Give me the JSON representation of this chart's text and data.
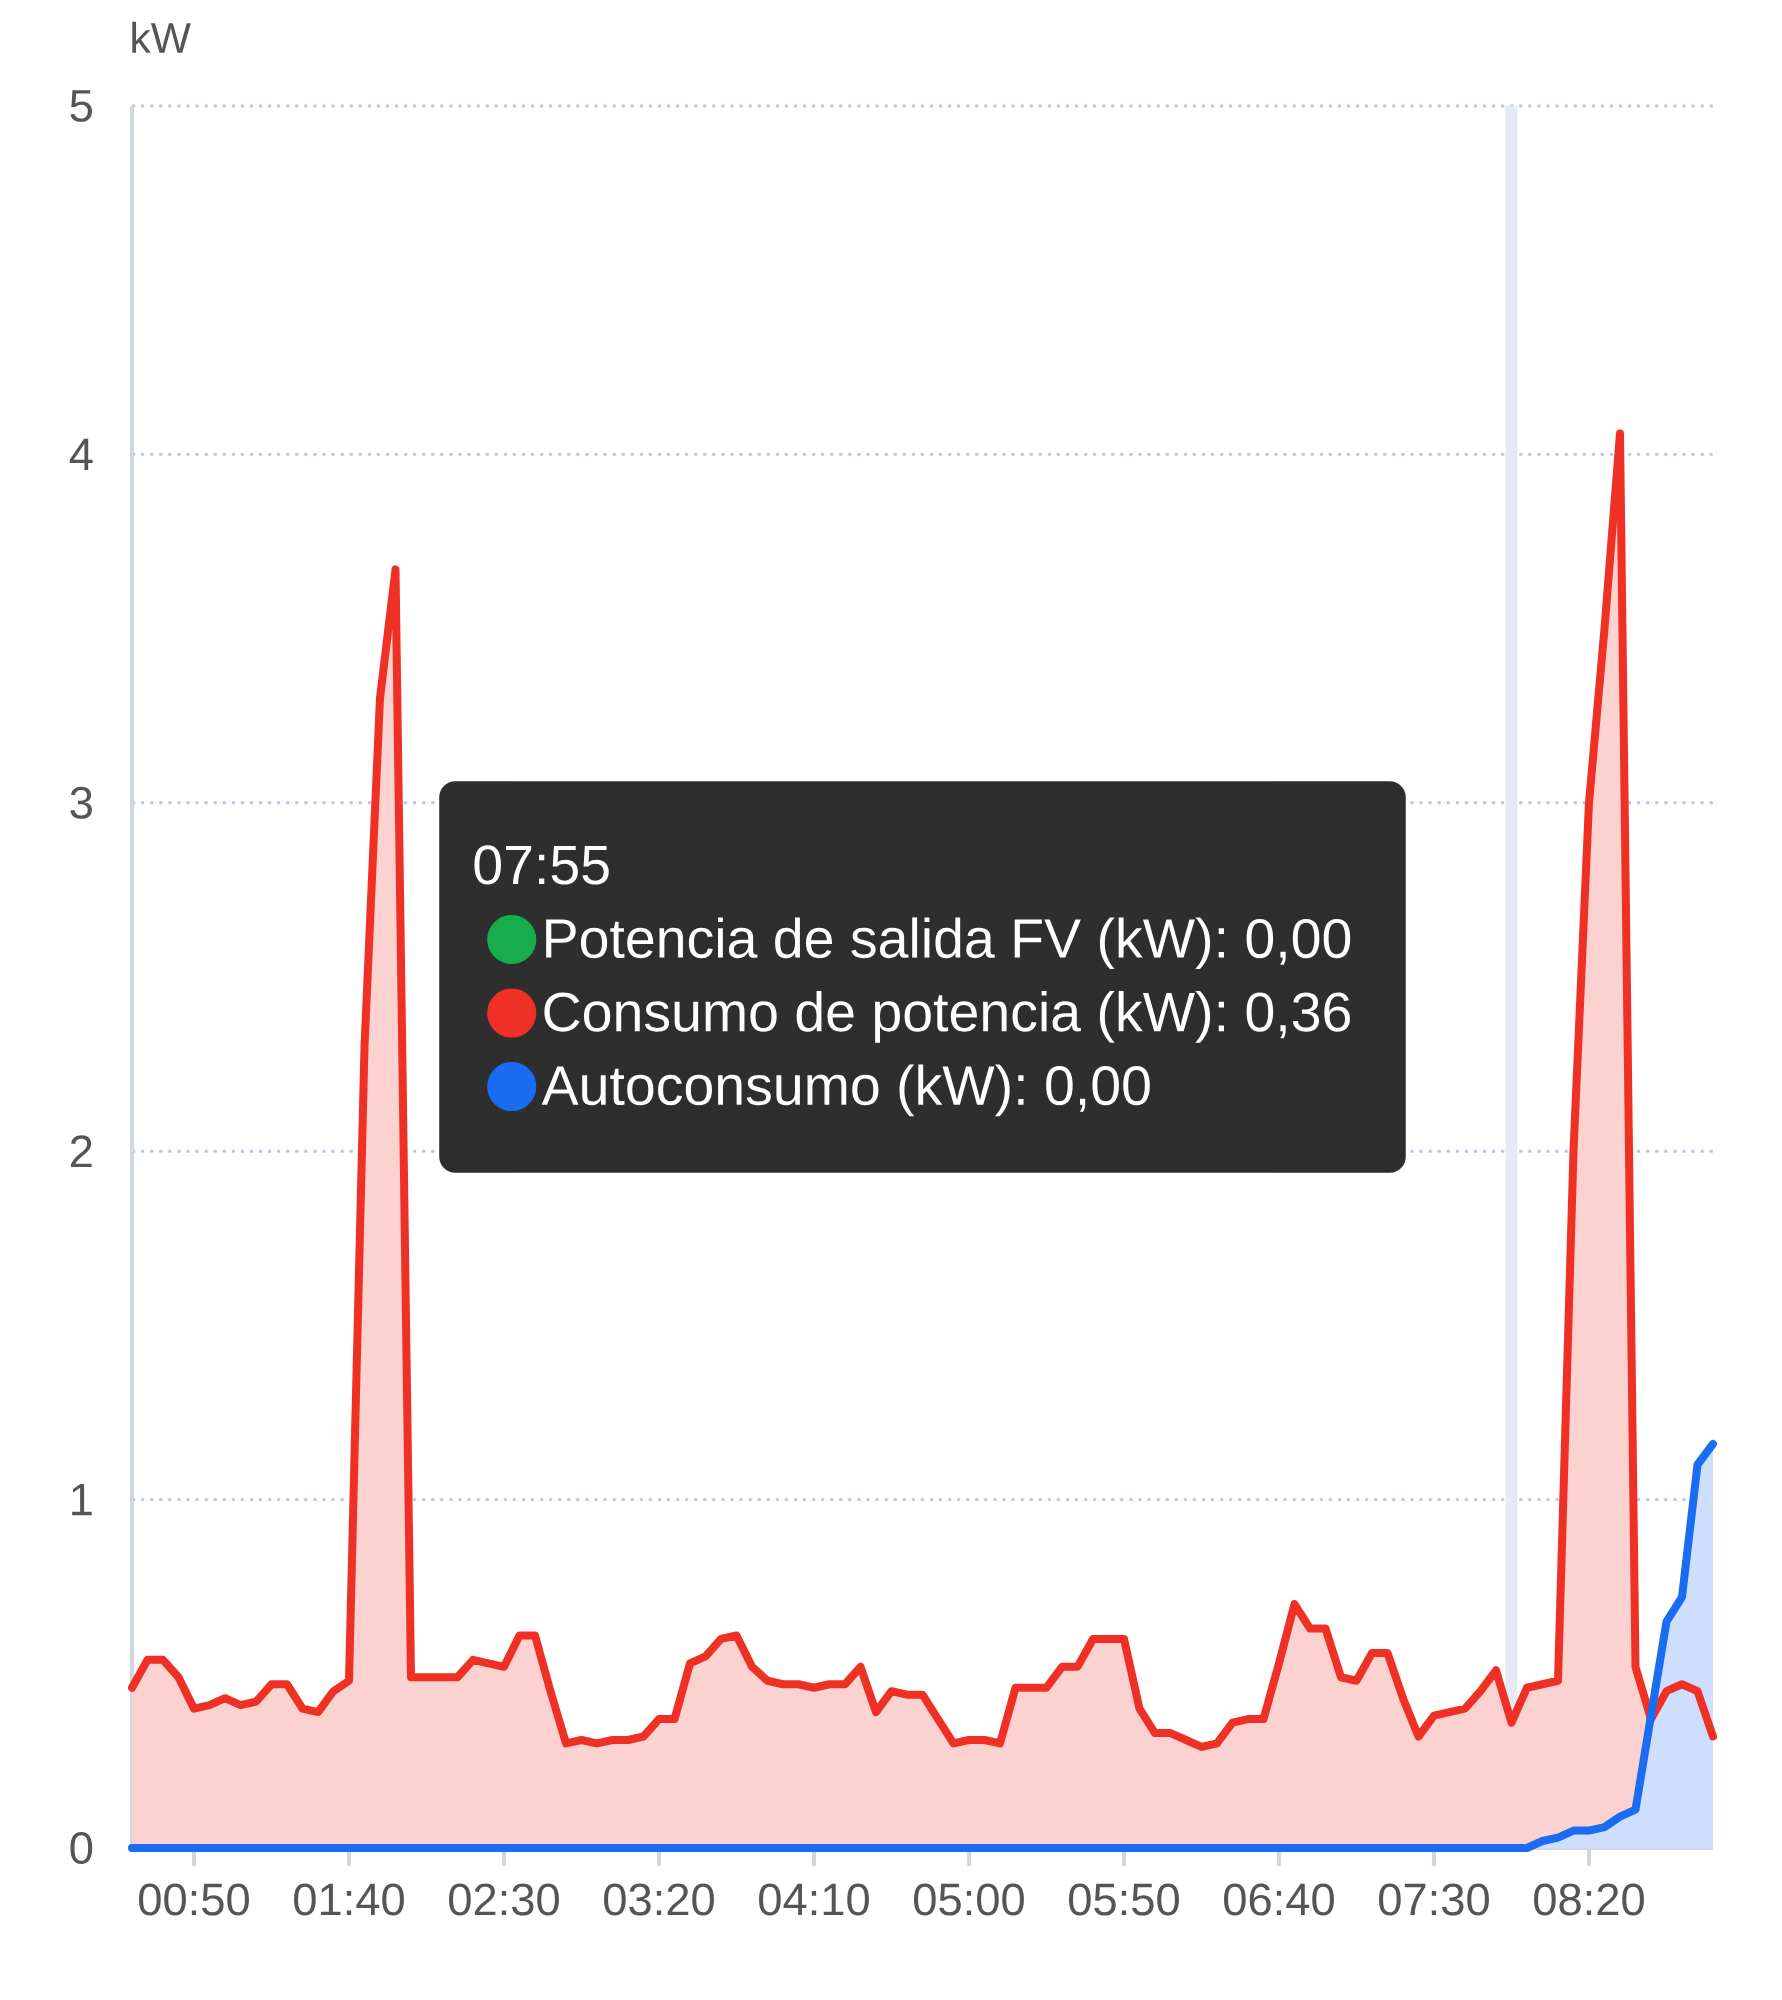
{
  "chart_data": {
    "type": "area",
    "ylabel": "kW",
    "legend_title": "07:55",
    "annotations": [
      ": 0,00",
      ": 0,36",
      ": 0,00"
    ],
    "x": [
      0.5,
      0.5833,
      0.6667,
      0.75,
      0.8333,
      0.9167,
      1.0,
      1.0833,
      1.1667,
      1.25,
      1.3333,
      1.4167,
      1.5,
      1.5833,
      1.6667,
      1.75,
      1.8333,
      1.9167,
      2.0,
      2.0833,
      2.1667,
      2.25,
      2.3333,
      2.4167,
      2.5,
      2.5833,
      2.6667,
      2.75,
      2.8333,
      2.9167,
      3.0,
      3.0833,
      3.1667,
      3.25,
      3.3333,
      3.4167,
      3.5,
      3.5833,
      3.6667,
      3.75,
      3.8333,
      3.9167,
      4.0,
      4.0833,
      4.1667,
      4.25,
      4.3333,
      4.4167,
      4.5,
      4.5833,
      4.6667,
      4.75,
      4.8333,
      4.9167,
      5.0,
      5.0833,
      5.1667,
      5.25,
      5.3333,
      5.4167,
      5.5,
      5.5833,
      5.6667,
      5.75,
      5.8333,
      5.9167,
      6.0,
      6.0833,
      6.1667,
      6.25,
      6.3333,
      6.4167,
      6.5,
      6.5833,
      6.6667,
      6.75,
      6.8333,
      6.9167,
      7.0,
      7.0833,
      7.1667,
      7.25,
      7.3333,
      7.4167,
      7.5,
      7.5833,
      7.6667,
      7.75,
      7.8333,
      7.9167,
      8.0,
      8.0833,
      8.1667,
      8.25,
      8.3333,
      8.4167,
      8.5,
      8.5833,
      8.6667,
      8.75,
      8.8333,
      8.9167,
      9.0
    ],
    "series": [
      {
        "name": "Potencia de salida FV (kW)",
        "color": "#17ac4c",
        "values": [
          null,
          null,
          null,
          null,
          null,
          null,
          null,
          null,
          null,
          null,
          null,
          null,
          null,
          null,
          null,
          null,
          null,
          null,
          null,
          null,
          null,
          null,
          null,
          null,
          null,
          null,
          null,
          null,
          null,
          null,
          null,
          null,
          null,
          null,
          null,
          null,
          null,
          null,
          null,
          null,
          null,
          null,
          null,
          null,
          null,
          null,
          null,
          null,
          null,
          null,
          null,
          null,
          null,
          null,
          null,
          null,
          null,
          null,
          null,
          null,
          null,
          null,
          null,
          null,
          null,
          null,
          null,
          null,
          null,
          null,
          null,
          null,
          null,
          null,
          null,
          null,
          null,
          null,
          null,
          null,
          null,
          null,
          null,
          null,
          null,
          null,
          null,
          null,
          null,
          null,
          null,
          null,
          null,
          null,
          null,
          null,
          null,
          null,
          null,
          null,
          null,
          null,
          null
        ]
      },
      {
        "name": "Consumo de potencia (kW)",
        "color": "#ee3124",
        "values": [
          0.46,
          0.54,
          0.54,
          0.49,
          0.4,
          0.41,
          0.43,
          0.41,
          0.42,
          0.47,
          0.47,
          0.4,
          0.39,
          0.45,
          0.48,
          2.3,
          3.3,
          3.67,
          0.49,
          0.49,
          0.49,
          0.49,
          0.54,
          0.53,
          0.52,
          0.61,
          0.61,
          0.45,
          0.3,
          0.31,
          0.3,
          0.31,
          0.31,
          0.32,
          0.37,
          0.37,
          0.53,
          0.55,
          0.6,
          0.61,
          0.52,
          0.48,
          0.47,
          0.47,
          0.46,
          0.47,
          0.47,
          0.52,
          0.39,
          0.45,
          0.44,
          0.44,
          0.37,
          0.3,
          0.31,
          0.31,
          0.3,
          0.46,
          0.46,
          0.46,
          0.52,
          0.52,
          0.6,
          0.6,
          0.6,
          0.4,
          0.33,
          0.33,
          0.31,
          0.29,
          0.3,
          0.36,
          0.37,
          0.37,
          0.53,
          0.7,
          0.63,
          0.63,
          0.49,
          0.48,
          0.56,
          0.56,
          0.43,
          0.32,
          0.38,
          0.39,
          0.4,
          0.45,
          0.51,
          0.36,
          0.46,
          0.47,
          0.48,
          2.0,
          3.0,
          3.5,
          4.06,
          0.52,
          0.37,
          0.45,
          0.47,
          0.45,
          0.32
        ]
      },
      {
        "name": "Autoconsumo (kW)",
        "color": "#1a6cf2",
        "x": [
          0.5,
          8.0,
          8.0833,
          8.1667,
          8.25,
          8.3333,
          8.4167,
          8.5,
          8.5833,
          8.6667,
          8.75,
          8.8333,
          8.9167,
          9.0
        ],
        "values": [
          0,
          0,
          0.02,
          0.03,
          0.05,
          0.05,
          0.06,
          0.09,
          0.11,
          0.38,
          0.65,
          0.72,
          1.1,
          1.16
        ]
      }
    ],
    "xlim": [
      0.5,
      9.0
    ],
    "ylim": [
      0,
      5
    ],
    "xticks": [
      {
        "value": 0.8333,
        "label": "00:50"
      },
      {
        "value": 1.6667,
        "label": "01:40"
      },
      {
        "value": 2.5,
        "label": "02:30"
      },
      {
        "value": 3.3333,
        "label": "03:20"
      },
      {
        "value": 4.1667,
        "label": "04:10"
      },
      {
        "value": 5.0,
        "label": "05:00"
      },
      {
        "value": 5.8333,
        "label": "05:50"
      },
      {
        "value": 6.6667,
        "label": "06:40"
      },
      {
        "value": 7.5,
        "label": "07:30"
      },
      {
        "value": 8.3333,
        "label": "08:20"
      }
    ],
    "yticks": [
      0,
      1,
      2,
      3,
      4,
      5
    ],
    "grid": "y",
    "legend": "center",
    "ref_lines": [
      {
        "axis": "x",
        "value": 7.9167,
        "color": "#e6eaf6"
      }
    ]
  }
}
